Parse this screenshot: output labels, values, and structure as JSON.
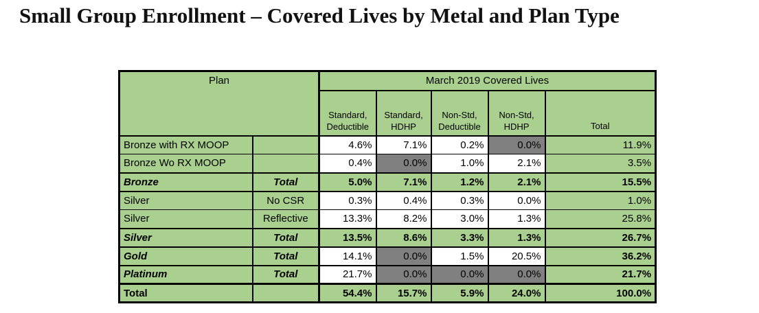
{
  "title": "Small Group Enrollment – Covered Lives by Metal and Plan Type",
  "colors": {
    "green": "#a9d08e",
    "gray": "#808080",
    "border": "#000000"
  },
  "table": {
    "header": {
      "plan_label": "Plan",
      "group_label": "March 2019 Covered Lives",
      "columns": [
        "Standard, Deductible",
        "Standard, HDHP",
        "Non-Std, Deductible",
        "Non-Std, HDHP",
        "Total"
      ]
    },
    "rows": [
      {
        "plan": "Bronze with RX MOOP",
        "sub": "",
        "style": "regular",
        "values": [
          "4.6%",
          "7.1%",
          "0.2%",
          "0.0%",
          "11.9%"
        ],
        "cell_bg": [
          "white",
          "white",
          "white",
          "gray",
          "green"
        ]
      },
      {
        "plan": "Bronze Wo RX MOOP",
        "sub": "",
        "style": "regular",
        "values": [
          "0.4%",
          "0.0%",
          "1.0%",
          "2.1%",
          "3.5%"
        ],
        "cell_bg": [
          "white",
          "gray",
          "white",
          "white",
          "green"
        ]
      },
      {
        "plan": "Bronze",
        "sub": "Total",
        "style": "metal-total",
        "values": [
          "5.0%",
          "7.1%",
          "1.2%",
          "2.1%",
          "15.5%"
        ],
        "cell_bg": [
          "green",
          "green",
          "green",
          "green",
          "green"
        ]
      },
      {
        "plan": "Silver",
        "sub": "No CSR",
        "style": "regular",
        "values": [
          "0.3%",
          "0.4%",
          "0.3%",
          "0.0%",
          "1.0%"
        ],
        "cell_bg": [
          "white",
          "white",
          "white",
          "white",
          "green"
        ]
      },
      {
        "plan": "Silver",
        "sub": "Reflective",
        "style": "regular",
        "values": [
          "13.3%",
          "8.2%",
          "3.0%",
          "1.3%",
          "25.8%"
        ],
        "cell_bg": [
          "white",
          "white",
          "white",
          "white",
          "green"
        ]
      },
      {
        "plan": "Silver",
        "sub": "Total",
        "style": "metal-total",
        "values": [
          "13.5%",
          "8.6%",
          "3.3%",
          "1.3%",
          "26.7%"
        ],
        "cell_bg": [
          "green",
          "green",
          "green",
          "green",
          "green"
        ]
      },
      {
        "plan": "Gold",
        "sub": "Total",
        "style": "metal-total-flat",
        "values": [
          "14.1%",
          "0.0%",
          "1.5%",
          "20.5%",
          "36.2%"
        ],
        "cell_bg": [
          "white",
          "gray",
          "white",
          "white",
          "green"
        ]
      },
      {
        "plan": "Platinum",
        "sub": "Total",
        "style": "metal-total-flat",
        "values": [
          "21.7%",
          "0.0%",
          "0.0%",
          "0.0%",
          "21.7%"
        ],
        "cell_bg": [
          "white",
          "gray",
          "gray",
          "gray",
          "green"
        ]
      },
      {
        "plan": "Total",
        "sub": "",
        "style": "grand-total",
        "values": [
          "54.4%",
          "15.7%",
          "5.9%",
          "24.0%",
          "100.0%"
        ],
        "cell_bg": [
          "green",
          "green",
          "green",
          "green",
          "green"
        ]
      }
    ]
  },
  "chart_data": {
    "type": "table",
    "title": "Small Group Enrollment – Covered Lives by Metal and Plan Type",
    "group_header": "March 2019 Covered Lives",
    "columns": [
      "Standard, Deductible",
      "Standard, HDHP",
      "Non-Std, Deductible",
      "Non-Std, HDHP",
      "Total"
    ],
    "rows": [
      {
        "plan": "Bronze with RX MOOP",
        "subtype": "",
        "values_pct": [
          4.6,
          7.1,
          0.2,
          0.0,
          11.9
        ]
      },
      {
        "plan": "Bronze Wo RX MOOP",
        "subtype": "",
        "values_pct": [
          0.4,
          0.0,
          1.0,
          2.1,
          3.5
        ]
      },
      {
        "plan": "Bronze",
        "subtype": "Total",
        "values_pct": [
          5.0,
          7.1,
          1.2,
          2.1,
          15.5
        ]
      },
      {
        "plan": "Silver",
        "subtype": "No CSR",
        "values_pct": [
          0.3,
          0.4,
          0.3,
          0.0,
          1.0
        ]
      },
      {
        "plan": "Silver",
        "subtype": "Reflective",
        "values_pct": [
          13.3,
          8.2,
          3.0,
          1.3,
          25.8
        ]
      },
      {
        "plan": "Silver",
        "subtype": "Total",
        "values_pct": [
          13.5,
          8.6,
          3.3,
          1.3,
          26.7
        ]
      },
      {
        "plan": "Gold",
        "subtype": "Total",
        "values_pct": [
          14.1,
          0.0,
          1.5,
          20.5,
          36.2
        ]
      },
      {
        "plan": "Platinum",
        "subtype": "Total",
        "values_pct": [
          21.7,
          0.0,
          0.0,
          0.0,
          21.7
        ]
      },
      {
        "plan": "Total",
        "subtype": "",
        "values_pct": [
          54.4,
          15.7,
          5.9,
          24.0,
          100.0
        ]
      }
    ],
    "highlight_gray_cells_meaning": "0.0% cells shaded gray",
    "units": "percent of covered lives"
  }
}
